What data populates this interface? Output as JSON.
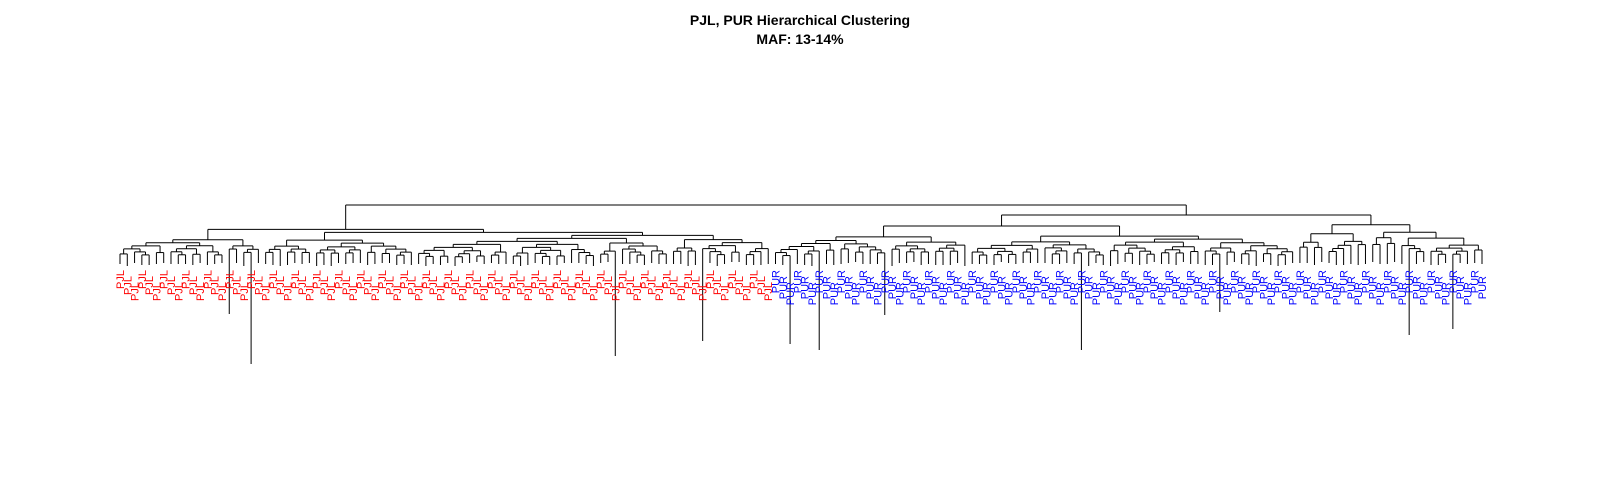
{
  "chart_data": {
    "type": "dendrogram",
    "title": "PJL, PUR Hierarchical Clustering",
    "subtitle": "MAF: 13-14%",
    "xlabel": "",
    "ylabel": "",
    "groups": [
      {
        "label": "PJL",
        "count": 90,
        "color": "#ff0000"
      },
      {
        "label": "PUR",
        "count": 98,
        "color": "#0000ff"
      }
    ]
  }
}
